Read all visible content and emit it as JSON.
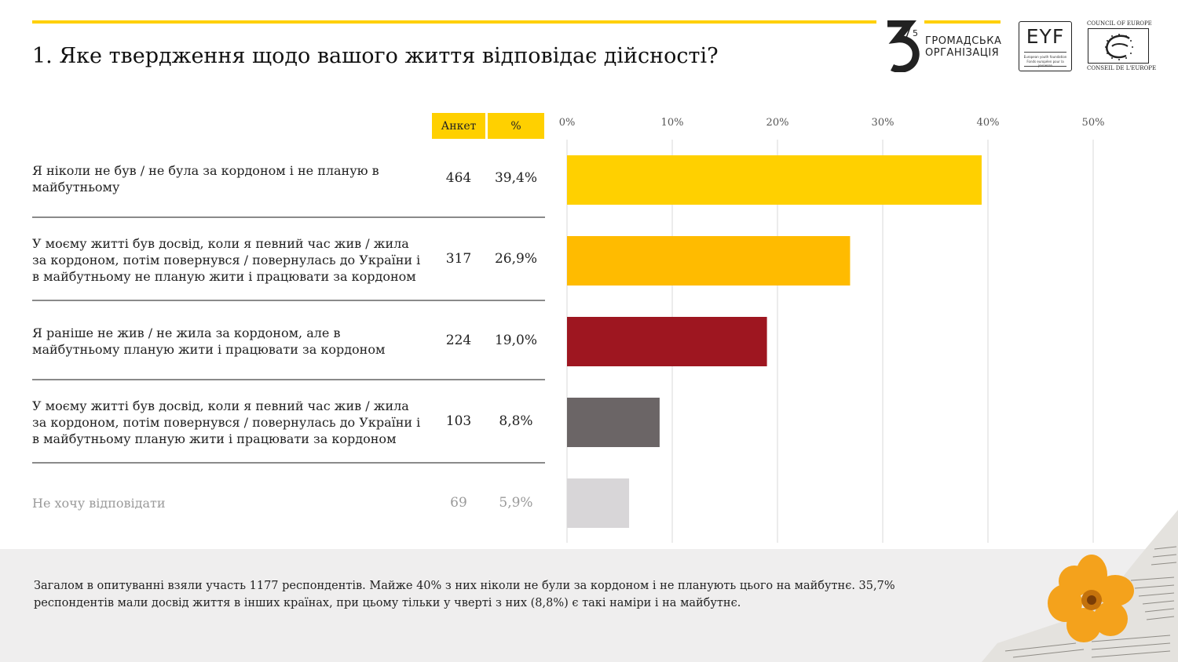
{
  "title": "1. Яке твердження щодо вашого життя відповідає дійсності?",
  "logos": {
    "org_line1": "ГРОМАДСЬКА",
    "org_line2": "ОРГАНІЗАЦІЯ",
    "num_main": "3",
    "num_sup": "5",
    "eyf": "EYF",
    "eyf_small1": "European youth foundation",
    "eyf_small2": "Fonds européen pour la jeunesse",
    "coe_top": "COUNCIL OF EUROPE",
    "coe_bottom": "CONSEIL DE L'EUROPE"
  },
  "table": {
    "header_count": "Анкет",
    "header_pct": "%",
    "rows": [
      {
        "label": "Я ніколи не був / не була за кордоном і не планую в майбутньому",
        "count": "464",
        "pct": "39,4%"
      },
      {
        "label": "У моєму житті був досвід, коли я певний час жив / жила за кордоном, потім повернувся / повернулась до України і в майбутньому не планую жити і працювати за кордоном",
        "count": "317",
        "pct": "26,9%"
      },
      {
        "label": "Я раніше не жив / не жила за кордоном, але в майбутньому планую жити і працювати за кордоном",
        "count": "224",
        "pct": "19,0%"
      },
      {
        "label": "У моєму житті був досвід, коли я певний час жив / жила за кордоном, потім повернувся / повернулась до України і в майбутньому планую жити і працювати за кордоном",
        "count": "103",
        "pct": "8,8%"
      },
      {
        "label": "Не хочу відповідати",
        "count": "69",
        "pct": "5,9%"
      }
    ]
  },
  "chart_data": {
    "type": "bar",
    "orientation": "horizontal",
    "x_ticks": [
      "0%",
      "10%",
      "20%",
      "30%",
      "40%",
      "50%"
    ],
    "xlim": [
      0,
      50
    ],
    "grid": true,
    "values": [
      39.4,
      26.9,
      19.0,
      8.8,
      5.9
    ],
    "colors": [
      "#ffd000",
      "#ffbb00",
      "#9e1620",
      "#6b6566",
      "#d8d6d8"
    ]
  },
  "footer": {
    "text": "Загалом в опитуванні взяли участь 1177 респондентів.  Майже 40% з них ніколи не були за кордоном і не планують цього на майбутнє. 35,7% респондентів мали досвід життя в інших країнах, при цьому тільки у чверті з них (8,8%) є такі наміри і на майбутнє."
  }
}
